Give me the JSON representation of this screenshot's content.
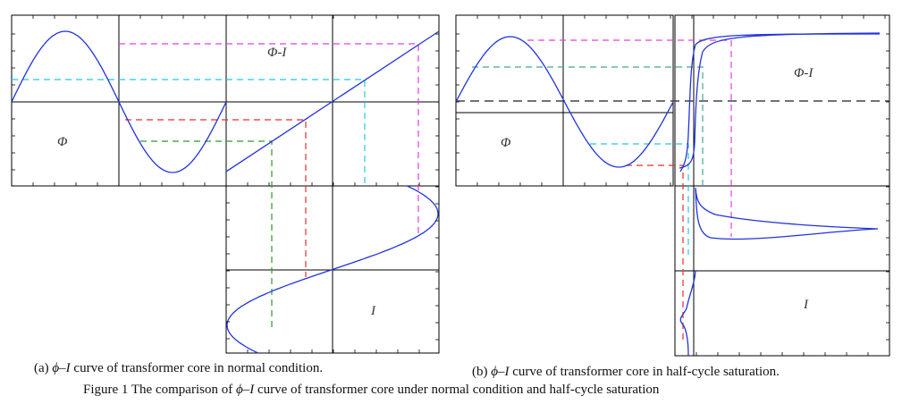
{
  "panel_a": {
    "label_phi": "Φ",
    "label_phi_i": "Φ-I",
    "label_i": "I",
    "caption_prefix": "(a) ",
    "caption_symbol": "ϕ–I",
    "caption_text": " curve of transformer core in normal condition."
  },
  "panel_b": {
    "label_phi": "Φ",
    "label_phi_i": "Φ-I",
    "label_i": "I",
    "caption_prefix": "(b) ",
    "caption_symbol": "ϕ–I",
    "caption_text": " curve of transformer core in half-cycle saturation."
  },
  "figure_caption": {
    "prefix": "Figure 1   The comparison of ",
    "symbol": "ϕ–I",
    "text": " curve of transformer core under normal condition and half-cycle saturation"
  },
  "colors": {
    "curve": "#2233dd",
    "magenta": "#e040e0",
    "cyan": "#20c8e8",
    "red": "#e03030",
    "green": "#2a9a2a",
    "teal_dash": "#40a890",
    "axis": "#000000"
  }
}
